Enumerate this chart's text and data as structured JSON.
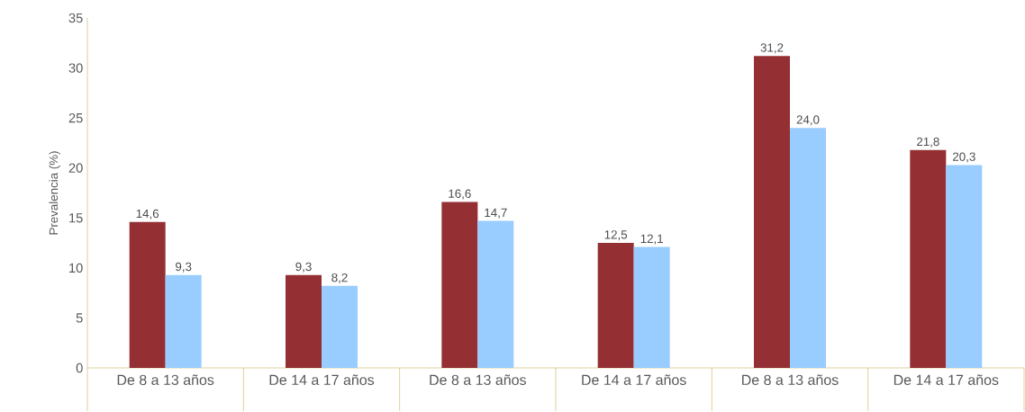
{
  "chart_data": {
    "type": "bar",
    "ylabel": "Prevalencia (%)",
    "categories": [
      "De 8 a 13 años",
      "De 14 a 17 años",
      "De 8 a 13 años",
      "De 14 a 17 años",
      "De 8 a 13 años",
      "De 14 a 17 años"
    ],
    "series": [
      {
        "color": "#943034",
        "values": [
          14.6,
          9.3,
          16.6,
          12.5,
          31.2,
          21.8
        ],
        "value_labels": [
          "14,6",
          "9,3",
          "16,6",
          "12,5",
          "31,2",
          "21,8"
        ]
      },
      {
        "color": "#99ccff",
        "values": [
          9.3,
          8.2,
          14.7,
          12.1,
          24.0,
          20.3
        ],
        "value_labels": [
          "9,3",
          "8,2",
          "14,7",
          "12,1",
          "24,0",
          "20,3"
        ]
      }
    ],
    "ylim": [
      0,
      35
    ],
    "yticks": [
      0,
      5,
      10,
      15,
      20,
      25,
      30,
      35
    ]
  }
}
